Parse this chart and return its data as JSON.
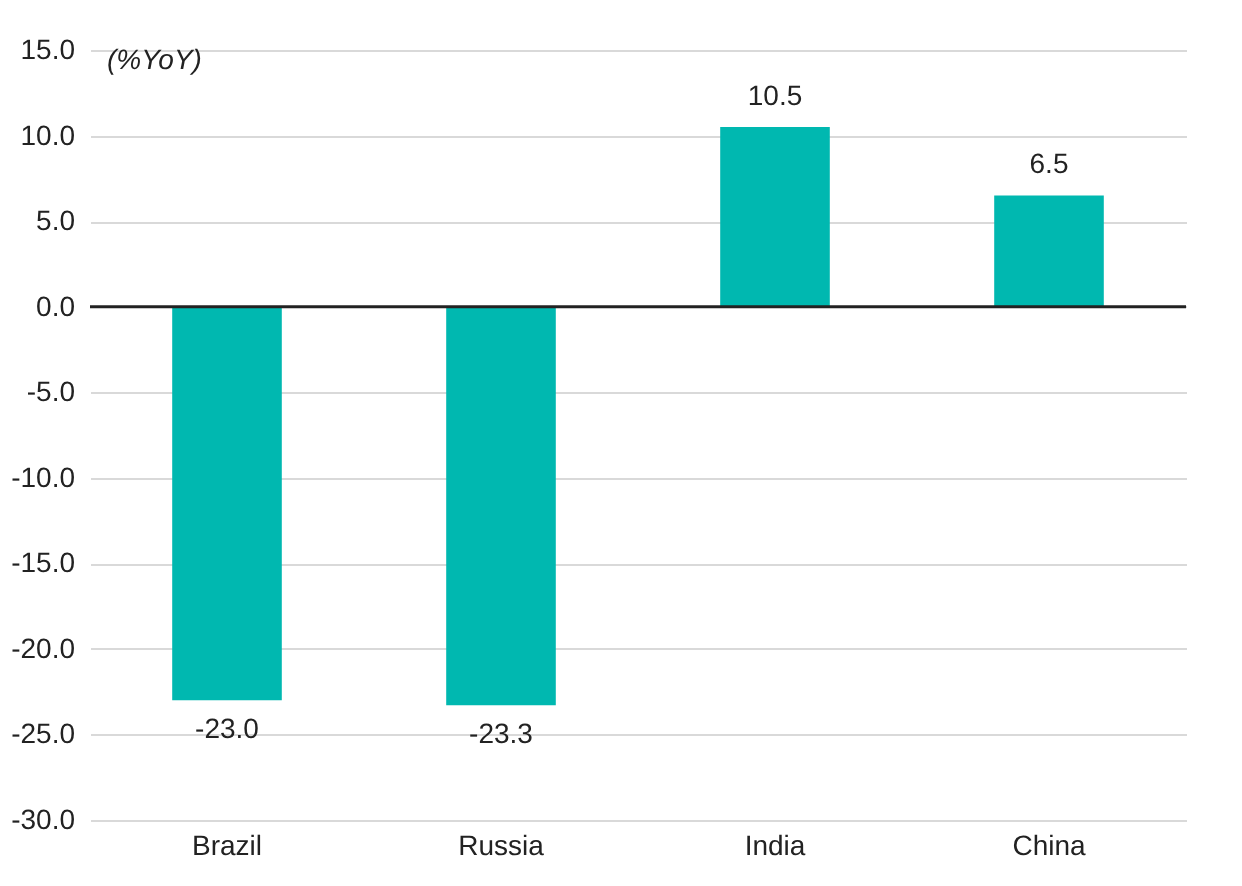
{
  "chart_data": {
    "type": "bar",
    "ylabel": "(%YoY)",
    "categories": [
      "Brazil",
      "Russia",
      "India",
      "China"
    ],
    "values": [
      -23.0,
      -23.3,
      10.5,
      6.5
    ],
    "color": "#00b8b0",
    "ylim": [
      -30,
      15
    ],
    "yticks": [
      {
        "value": -30,
        "label": "-30.0"
      },
      {
        "value": -25,
        "label": "-25.0"
      },
      {
        "value": -20,
        "label": "-20.0"
      },
      {
        "value": -15,
        "label": "-15.0"
      },
      {
        "value": -10,
        "label": "-10.0"
      },
      {
        "value": -5,
        "label": "-5.0"
      },
      {
        "value": 0,
        "label": "0.0"
      },
      {
        "value": 5,
        "label": "5.0"
      },
      {
        "value": 10,
        "label": "10.0"
      },
      {
        "value": 15,
        "label": "15.0"
      }
    ],
    "grid": "y",
    "value_labels": [
      "-23.0",
      "-23.3",
      "10.5",
      "6.5"
    ]
  }
}
